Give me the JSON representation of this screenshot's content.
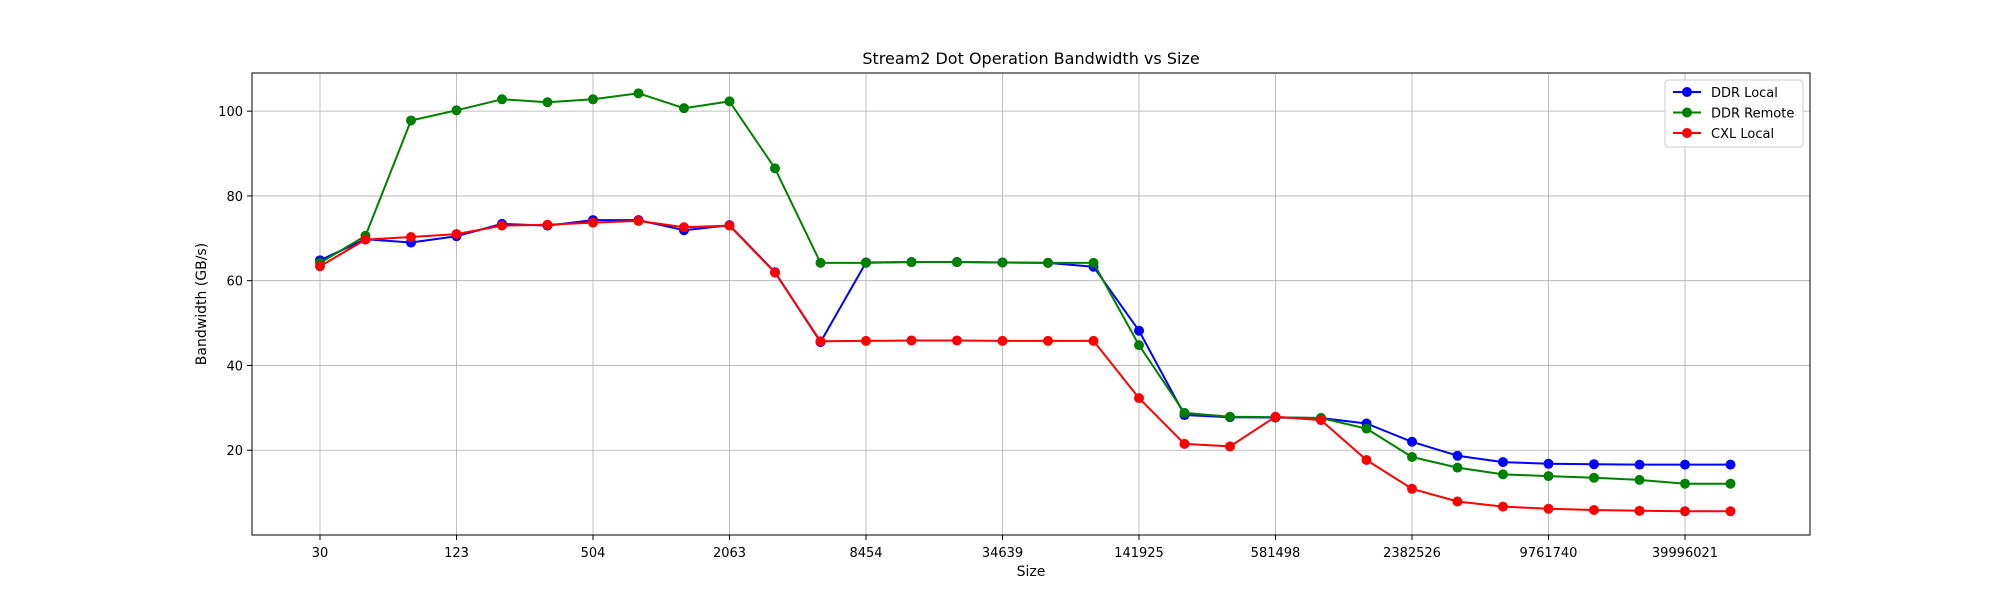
{
  "chart_data": {
    "type": "line",
    "title": "Stream2 Dot Operation Bandwidth vs Size",
    "xlabel": "Size",
    "ylabel": "Bandwidth (GB/s)",
    "x_scale": "log (categorical positions)",
    "x": [
      30,
      60,
      90,
      123,
      246,
      369,
      504,
      1008,
      1512,
      2063,
      4126,
      6189,
      8454,
      16908,
      25362,
      34639,
      69278,
      103917,
      141925,
      283850,
      425775,
      581498,
      1162996,
      1744494,
      2382526,
      4765052,
      7147578,
      9761740,
      19523480,
      29285220,
      39996021,
      79992042
    ],
    "x_tick_labels": [
      "30",
      "123",
      "504",
      "2063",
      "8454",
      "34639",
      "141925",
      "581498",
      "2382526",
      "9761740",
      "39996021"
    ],
    "x_tick_indices": [
      0,
      3,
      6,
      9,
      12,
      15,
      18,
      21,
      24,
      27,
      30
    ],
    "y_ticks": [
      20,
      40,
      60,
      80,
      100
    ],
    "ylim": [
      0,
      109
    ],
    "grid": true,
    "legend_position": "top-right",
    "series": [
      {
        "name": "DDR Local",
        "color": "#0000ff",
        "values": [
          64.8,
          69.8,
          69.0,
          70.5,
          73.4,
          73.0,
          74.3,
          74.3,
          71.9,
          73.1,
          62.0,
          45.5,
          64.3,
          64.4,
          64.4,
          64.3,
          64.2,
          63.3,
          48.2,
          28.3,
          27.8,
          27.7,
          27.6,
          26.3,
          22.0,
          18.7,
          17.2,
          16.8,
          16.7,
          16.6,
          16.6,
          16.6
        ]
      },
      {
        "name": "DDR Remote",
        "color": "#008000",
        "values": [
          64.2,
          70.6,
          97.8,
          100.2,
          102.8,
          102.1,
          102.8,
          104.2,
          100.7,
          102.3,
          86.5,
          64.2,
          64.2,
          64.4,
          64.4,
          64.3,
          64.2,
          64.2,
          44.8,
          28.8,
          27.9,
          27.8,
          27.6,
          25.1,
          18.4,
          15.9,
          14.3,
          13.9,
          13.5,
          13.0,
          12.1,
          12.1
        ]
      },
      {
        "name": "CXL Local",
        "color": "#ff0000",
        "values": [
          63.4,
          69.7,
          70.3,
          71.0,
          73.0,
          73.2,
          73.7,
          74.1,
          72.6,
          73.0,
          61.9,
          45.7,
          45.8,
          45.9,
          45.9,
          45.8,
          45.8,
          45.8,
          32.3,
          21.5,
          20.9,
          27.9,
          27.1,
          17.7,
          10.9,
          7.9,
          6.7,
          6.2,
          5.9,
          5.7,
          5.6,
          5.6
        ]
      }
    ]
  }
}
